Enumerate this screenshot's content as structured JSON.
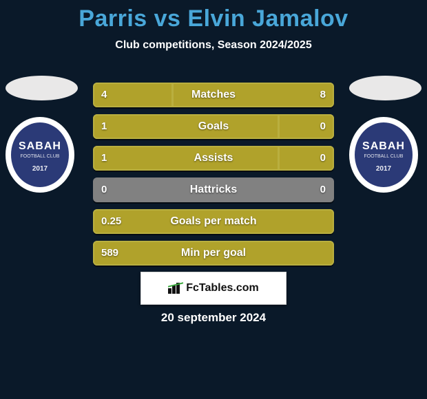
{
  "title": "Parris vs Elvin Jamalov",
  "subtitle": "Club competitions, Season 2024/2025",
  "colors": {
    "page_bg": "#0a1929",
    "title_color": "#49a7d9",
    "bar_fill": "#b0a22b",
    "bar_border": "#b9af3f",
    "bar_track": "#818181",
    "text": "#ffffff"
  },
  "club": {
    "name": "SABAH",
    "sub": "FOOTBALL CLUB",
    "year": "2017",
    "badge_outer": "#ffffff",
    "badge_inner": "#2b3a77"
  },
  "chart": {
    "type": "diverging-bar",
    "rows": [
      {
        "label": "Matches",
        "left_val": "4",
        "right_val": "8",
        "left_share": 0.33,
        "right_share": 0.67
      },
      {
        "label": "Goals",
        "left_val": "1",
        "right_val": "0",
        "left_share": 0.77,
        "right_share": 0.23
      },
      {
        "label": "Assists",
        "left_val": "1",
        "right_val": "0",
        "left_share": 0.77,
        "right_share": 0.23
      },
      {
        "label": "Hattricks",
        "left_val": "0",
        "right_val": "0",
        "left_share": 0.0,
        "right_share": 0.0
      },
      {
        "label": "Goals per match",
        "left_val": "0.25",
        "right_val": "",
        "left_share": 1.0,
        "right_share": 0
      },
      {
        "label": "Min per goal",
        "left_val": "589",
        "right_val": "",
        "left_share": 1.0,
        "right_share": 0
      }
    ]
  },
  "footer": {
    "site": "FcTables.com",
    "date": "20 september 2024"
  }
}
